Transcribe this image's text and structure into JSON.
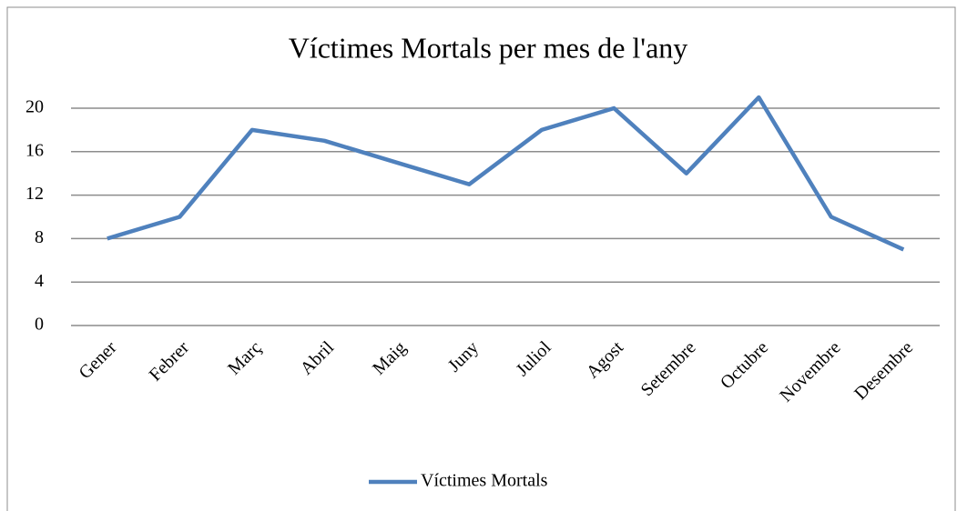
{
  "chart_data": {
    "type": "line",
    "title": "Víctimes Mortals per mes de l'any",
    "categories": [
      "Gener",
      "Febrer",
      "Març",
      "Abril",
      "Maig",
      "Juny",
      "Juliol",
      "Agost",
      "Setembre",
      "Octubre",
      "Novembre",
      "Desembre"
    ],
    "series": [
      {
        "name": "Víctimes Mortals",
        "color": "#4f81bd",
        "values": [
          8,
          10,
          18,
          17,
          15,
          13,
          18,
          20,
          14,
          21,
          10,
          7
        ]
      }
    ],
    "ylim": [
      0,
      21
    ],
    "yticks": [
      0,
      4,
      8,
      12,
      16,
      20
    ],
    "grid": true,
    "legend": "bottom"
  }
}
